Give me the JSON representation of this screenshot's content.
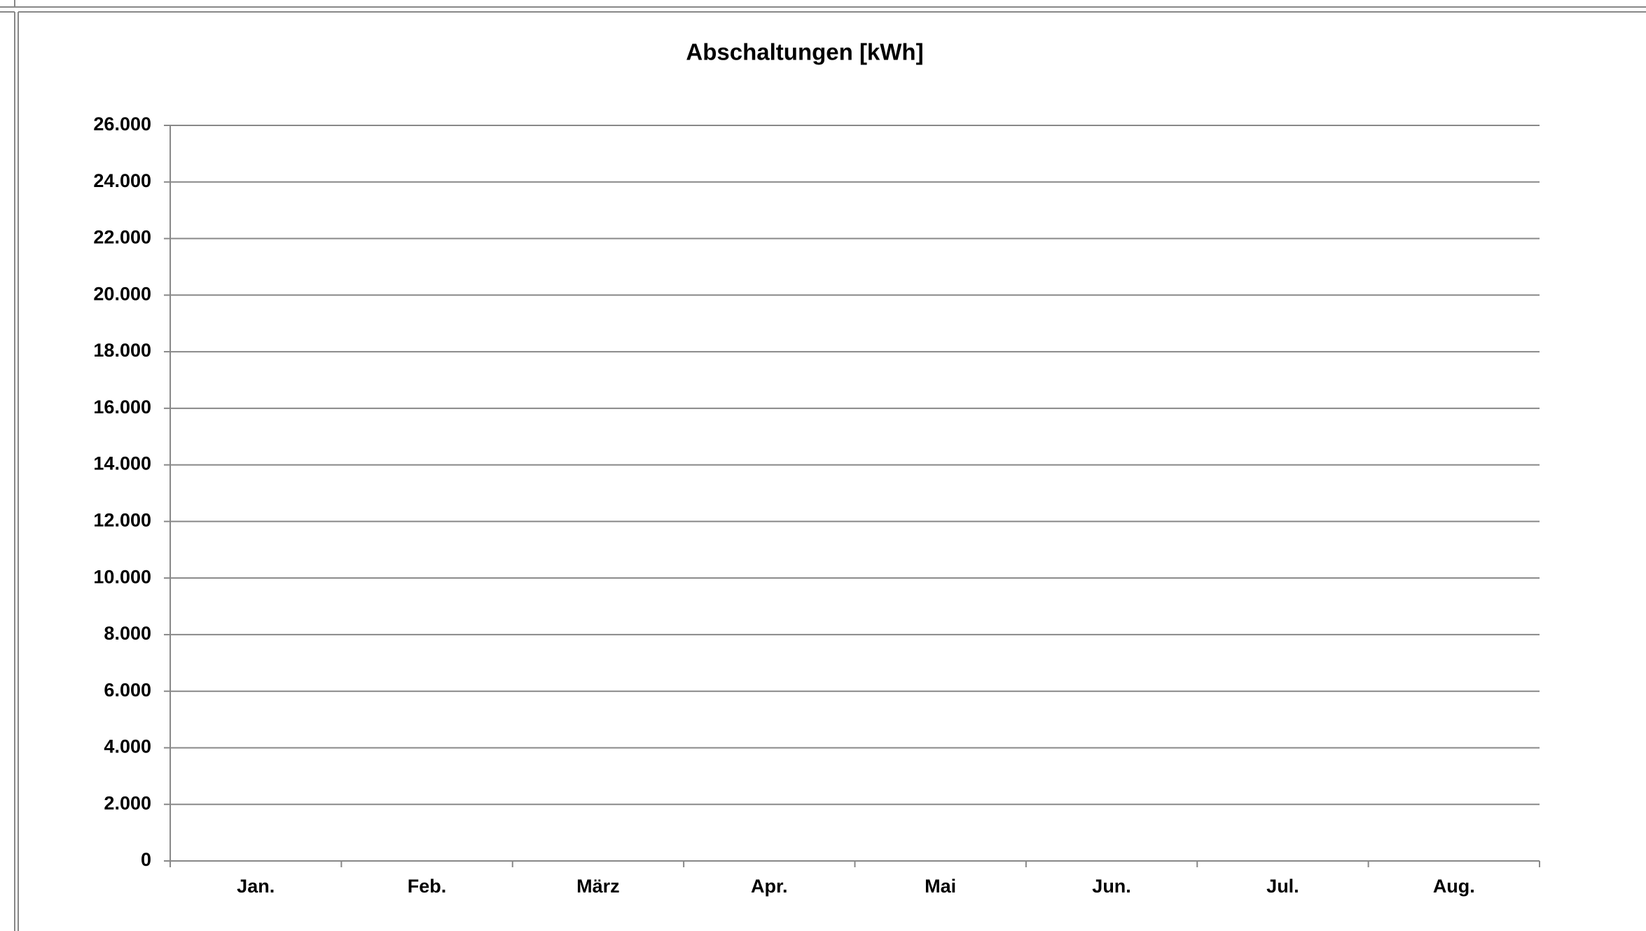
{
  "chart_data": {
    "type": "bar",
    "title": "Abschaltungen [kWh]",
    "categories": [
      "Jan.",
      "Feb.",
      "März",
      "Apr.",
      "Mai",
      "Jun.",
      "Jul.",
      "Aug."
    ],
    "ylim": [
      0,
      26000
    ],
    "yticks": [
      0,
      {
        "value": 2000,
        "label": "2.000"
      },
      {
        "value": 4000,
        "label": "4.000"
      },
      {
        "value": 6000,
        "label": "6.000"
      },
      {
        "value": 8000,
        "label": "8.000"
      },
      {
        "value": 10000,
        "label": "10.000"
      },
      {
        "value": 12000,
        "label": "12.000"
      },
      {
        "value": 14000,
        "label": "14.000"
      },
      {
        "value": 16000,
        "label": "16.000"
      },
      {
        "value": 18000,
        "label": "18.000"
      },
      {
        "value": 20000,
        "label": "20.000"
      },
      {
        "value": 22000,
        "label": "22.000"
      },
      {
        "value": 24000,
        "label": "24.000"
      },
      {
        "value": 26000,
        "label": "26.000"
      }
    ],
    "grid": true
  }
}
